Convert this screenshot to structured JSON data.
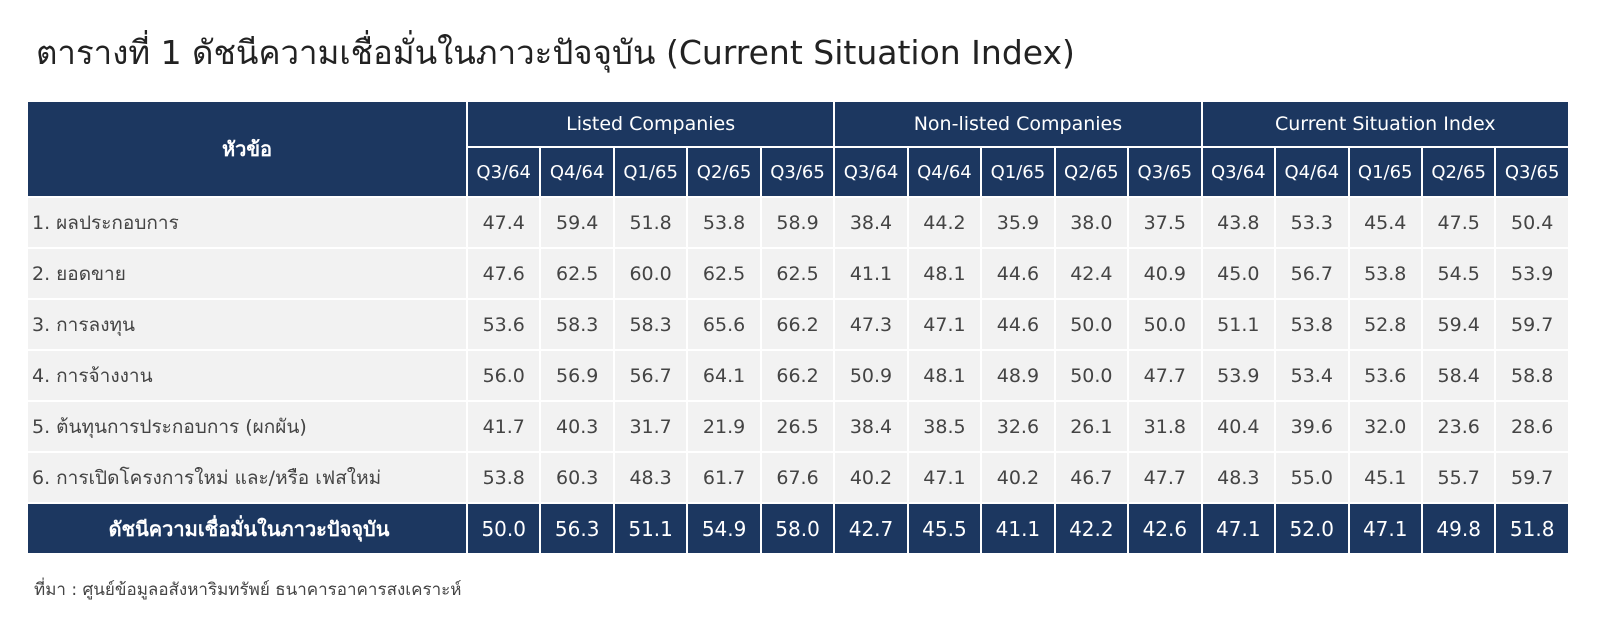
{
  "title": "ตารางที่ 1 ดัชนีความเชื่อมั่นในภาวะปัจจุบัน (Current Situation Index)",
  "table": {
    "corner": "หัวข้อ",
    "groups": [
      {
        "name": "Listed Companies",
        "quarters": [
          "Q3/64",
          "Q4/64",
          "Q1/65",
          "Q2/65",
          "Q3/65"
        ]
      },
      {
        "name": "Non-listed Companies",
        "quarters": [
          "Q3/64",
          "Q4/64",
          "Q1/65",
          "Q2/65",
          "Q3/65"
        ]
      },
      {
        "name": "Current Situation Index",
        "quarters": [
          "Q3/64",
          "Q4/64",
          "Q1/65",
          "Q2/65",
          "Q3/65"
        ]
      }
    ],
    "rows": [
      {
        "label": "1. ผลประกอบการ",
        "values": [
          "47.4",
          "59.4",
          "51.8",
          "53.8",
          "58.9",
          "38.4",
          "44.2",
          "35.9",
          "38.0",
          "37.5",
          "43.8",
          "53.3",
          "45.4",
          "47.5",
          "50.4"
        ]
      },
      {
        "label": "2. ยอดขาย",
        "values": [
          "47.6",
          "62.5",
          "60.0",
          "62.5",
          "62.5",
          "41.1",
          "48.1",
          "44.6",
          "42.4",
          "40.9",
          "45.0",
          "56.7",
          "53.8",
          "54.5",
          "53.9"
        ]
      },
      {
        "label": "3. การลงทุน",
        "values": [
          "53.6",
          "58.3",
          "58.3",
          "65.6",
          "66.2",
          "47.3",
          "47.1",
          "44.6",
          "50.0",
          "50.0",
          "51.1",
          "53.8",
          "52.8",
          "59.4",
          "59.7"
        ]
      },
      {
        "label": "4. การจ้างงาน",
        "values": [
          "56.0",
          "56.9",
          "56.7",
          "64.1",
          "66.2",
          "50.9",
          "48.1",
          "48.9",
          "50.0",
          "47.7",
          "53.9",
          "53.4",
          "53.6",
          "58.4",
          "58.8"
        ]
      },
      {
        "label": "5. ต้นทุนการประกอบการ (ผกผัน)",
        "values": [
          "41.7",
          "40.3",
          "31.7",
          "21.9",
          "26.5",
          "38.4",
          "38.5",
          "32.6",
          "26.1",
          "31.8",
          "40.4",
          "39.6",
          "32.0",
          "23.6",
          "28.6"
        ]
      },
      {
        "label": "6. การเปิดโครงการใหม่ และ/หรือ เฟสใหม่",
        "values": [
          "53.8",
          "60.3",
          "48.3",
          "61.7",
          "67.6",
          "40.2",
          "47.1",
          "40.2",
          "46.7",
          "47.7",
          "48.3",
          "55.0",
          "45.1",
          "55.7",
          "59.7"
        ]
      }
    ],
    "total": {
      "label": "ดัชนีความเชื่อมั่นในภาวะปัจจุบัน",
      "values": [
        "50.0",
        "56.3",
        "51.1",
        "54.9",
        "58.0",
        "42.7",
        "45.5",
        "41.1",
        "42.2",
        "42.6",
        "47.1",
        "52.0",
        "47.1",
        "49.8",
        "51.8"
      ]
    }
  },
  "source": "ที่มา : ศูนย์ข้อมูลอสังหาริมทรัพย์ ธนาคารอาคารสงเคราะห์"
}
